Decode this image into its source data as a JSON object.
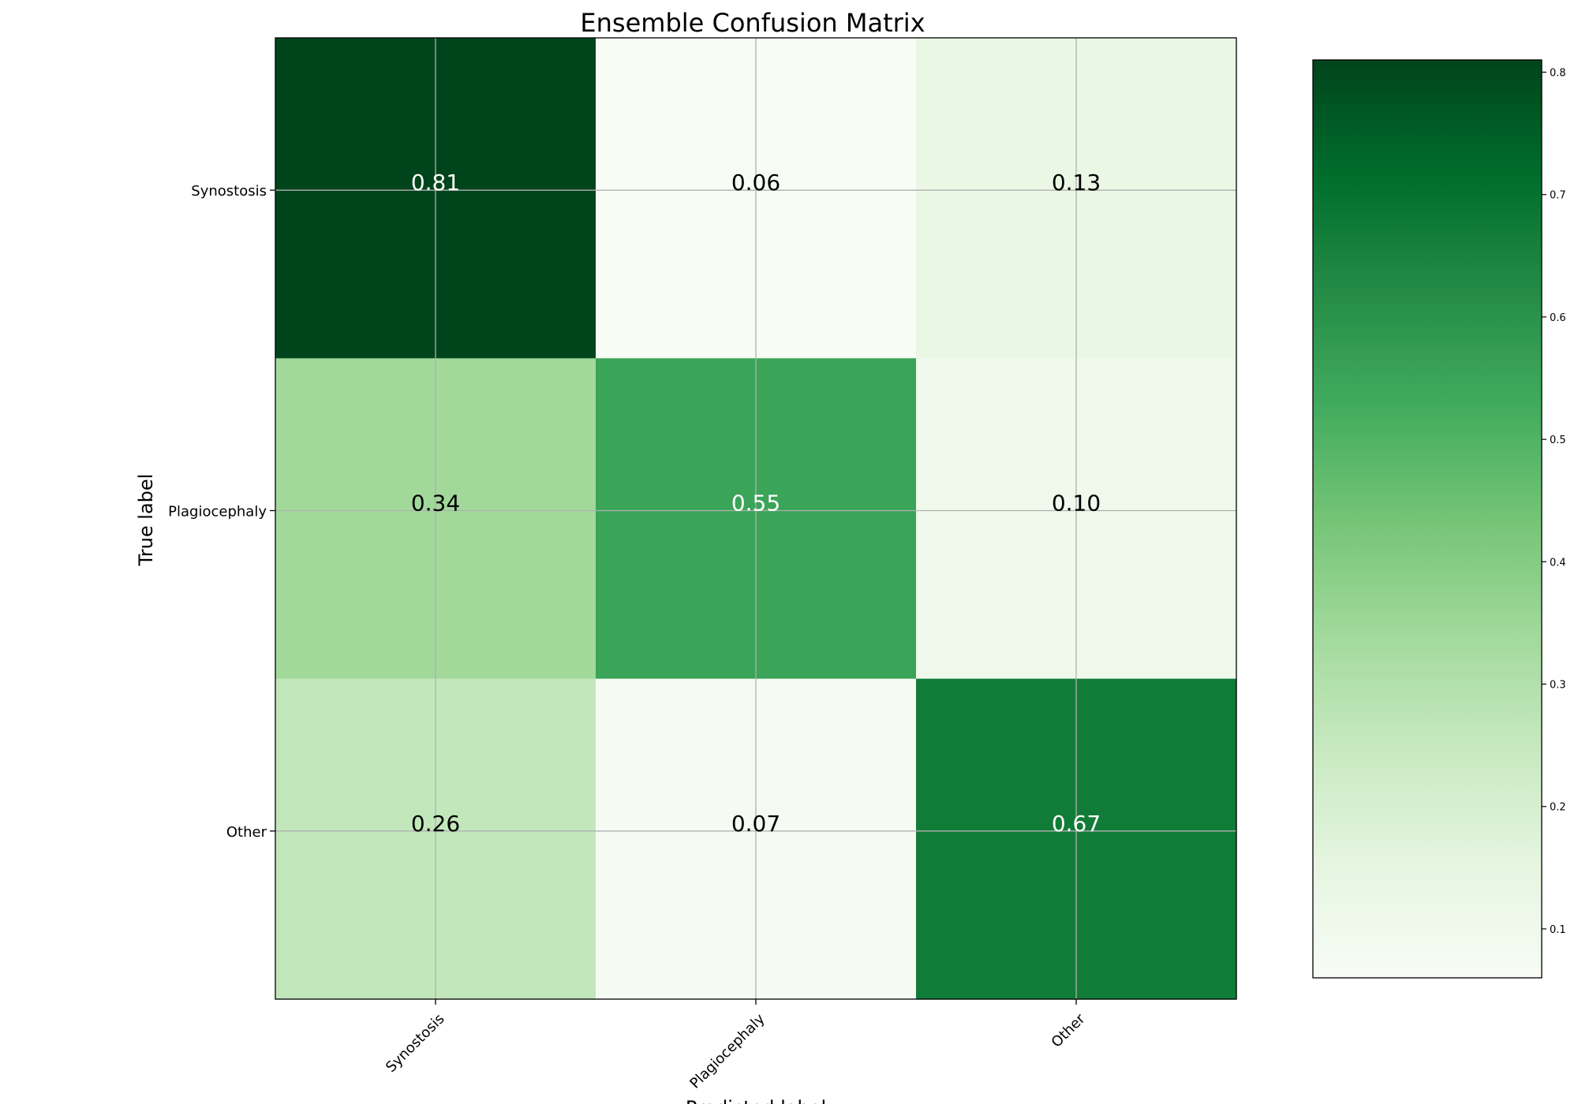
{
  "chart_data": {
    "type": "heatmap",
    "title": "Ensemble Confusion Matrix",
    "xlabel": "Predicted label",
    "ylabel": "True label",
    "x_categories": [
      "Synostosis",
      "Plagiocephaly",
      "Other"
    ],
    "y_categories": [
      "Synostosis",
      "Plagiocephaly",
      "Other"
    ],
    "values": [
      [
        0.81,
        0.06,
        0.13
      ],
      [
        0.34,
        0.55,
        0.1
      ],
      [
        0.26,
        0.07,
        0.67
      ]
    ],
    "cell_labels": [
      [
        "0.81",
        "0.06",
        "0.13"
      ],
      [
        "0.34",
        "0.55",
        "0.10"
      ],
      [
        "0.26",
        "0.07",
        "0.67"
      ]
    ],
    "colormap": "Greens",
    "colormap_stops": [
      "#f7fcf5",
      "#e5f5e0",
      "#c7e9c0",
      "#a1d99b",
      "#74c476",
      "#41ab5d",
      "#238b45",
      "#006d2c",
      "#00441b"
    ],
    "colorbar": {
      "range": [
        0.06,
        0.81
      ],
      "ticks": [
        0.1,
        0.2,
        0.3,
        0.4,
        0.5,
        0.6,
        0.7,
        0.8
      ],
      "tick_labels": [
        "0.1",
        "0.2",
        "0.3",
        "0.4",
        "0.5",
        "0.6",
        "0.7",
        "0.8"
      ]
    },
    "grid": true
  }
}
